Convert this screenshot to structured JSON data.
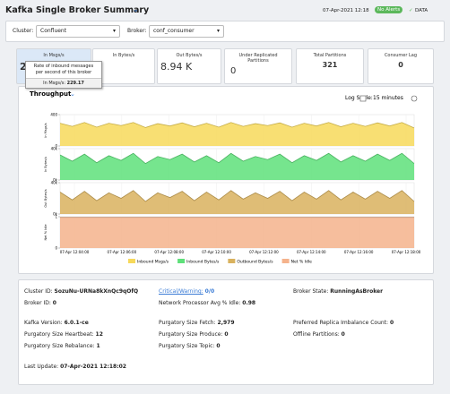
{
  "header": {
    "title": "Kafka Single Broker Summary",
    "date": "07-Apr-2021 12:18",
    "alert": "No Alerts",
    "data_label": "DATA"
  },
  "filters": {
    "cluster_label": "Cluster:",
    "cluster": "Confluent",
    "broker_label": "Broker:",
    "broker": "conf_consumer"
  },
  "kpis": [
    {
      "label": "In Msgs/s",
      "value": "2"
    },
    {
      "label": "In Bytes/s"
    },
    {
      "label": "Out Bytes/s",
      "value": "8.94 K"
    },
    {
      "label": "Under Replicated Partitions",
      "value": "0"
    },
    {
      "label": "Total Partitions",
      "value": "321"
    },
    {
      "label": "Consumer Lag",
      "value": "0"
    }
  ],
  "tooltip": {
    "text": "Rate of inbound messages per second of this broker",
    "label": "In Msgs/s:",
    "value": "229.17"
  },
  "panel": {
    "title": "Throughput",
    "log_scale_label": "Log Scale:",
    "log_scale": false,
    "time_range": "15 minutes"
  },
  "chart_data": [
    {
      "type": "area",
      "ylabel": "In Msgs/s",
      "ylim": [
        0,
        400
      ],
      "yticks": [
        0,
        400
      ],
      "series": [
        {
          "name": "Inbound Msgs/s",
          "color": "#f7d95a",
          "values": [
            290,
            250,
            300,
            240,
            290,
            260,
            300,
            235,
            285,
            255,
            295,
            245,
            290,
            240,
            300,
            250,
            285,
            260,
            295,
            240,
            290,
            255,
            300,
            245,
            290,
            250,
            295,
            255,
            300,
            230
          ]
        }
      ]
    },
    {
      "type": "area",
      "ylabel": "In Bytes/s",
      "ylim": [
        0,
        40000
      ],
      "yticks": [
        {
          "value": 0,
          "label": "0k"
        },
        {
          "value": 40000,
          "label": "40k"
        }
      ],
      "series": [
        {
          "name": "Inbound Bytes/s",
          "color": "#5ee07a",
          "values": [
            32000,
            24000,
            33000,
            22000,
            31000,
            25000,
            34000,
            21000,
            30000,
            26000,
            33000,
            23000,
            31000,
            22000,
            34000,
            24000,
            30000,
            26000,
            33000,
            22000,
            31000,
            25000,
            34000,
            23000,
            31000,
            24000,
            33000,
            25000,
            34000,
            21000
          ]
        }
      ]
    },
    {
      "type": "area",
      "ylabel": "Out Bytes/s",
      "ylim": [
        0,
        40000
      ],
      "yticks": [
        {
          "value": 0,
          "label": "0k"
        },
        {
          "value": 40000,
          "label": "40k"
        }
      ],
      "series": [
        {
          "name": "Outbound Bytes/s",
          "color": "#d9b25e",
          "values": [
            28000,
            18000,
            29000,
            17000,
            27000,
            20000,
            30000,
            16000,
            27000,
            21000,
            29000,
            17000,
            28000,
            18000,
            30000,
            19000,
            27000,
            20000,
            29000,
            17000,
            28000,
            19000,
            30000,
            18000,
            28000,
            19000,
            29000,
            20000,
            30000,
            16000
          ]
        }
      ]
    },
    {
      "type": "area",
      "ylabel": "Net % Idle",
      "ylim": [
        0,
        1
      ],
      "yticks": [
        0,
        1
      ],
      "xticks": [
        "07-Apr 12:04:00",
        "07-Apr 12:06:00",
        "07-Apr 12:08:00",
        "07-Apr 12:10:00",
        "07-Apr 12:12:00",
        "07-Apr 12:14:00",
        "07-Apr 12:16:00",
        "07-Apr 12:18:00"
      ],
      "series": [
        {
          "name": "Net % Idle",
          "color": "#f5b38c",
          "values": [
            0.98,
            0.98,
            0.98,
            0.98,
            0.98,
            0.98,
            0.98,
            0.98,
            0.98,
            0.98,
            0.98,
            0.98,
            0.98,
            0.98,
            0.98,
            0.98,
            0.98,
            0.98,
            0.98,
            0.98,
            0.98,
            0.98,
            0.98,
            0.98,
            0.98,
            0.98,
            0.98,
            0.98,
            0.98,
            0.98
          ]
        }
      ]
    }
  ],
  "info": [
    [
      {
        "label": "Cluster ID:",
        "value": "SozuNu-URNa8kXnQc9qOfQ"
      },
      {
        "label": "Critical/Warning:",
        "value": "0/0"
      },
      {
        "label": "Broker State:",
        "value": "RunningAsBroker"
      }
    ],
    [
      {
        "label": "Broker ID:",
        "value": "0"
      },
      {
        "label": "Network Processor Avg % Idle:",
        "value": "0.98"
      }
    ],
    [
      {
        "label": "Kafka Version:",
        "value": "6.0.1-ce"
      },
      {
        "label": "Purgatory Size Fetch:",
        "value": "2,979"
      },
      {
        "label": "Preferred Replica Imbalance Count:",
        "value": "0"
      }
    ],
    [
      {
        "label": "Purgatory Size Heartbeat:",
        "value": "12"
      },
      {
        "label": "Purgatory Size Produce:",
        "value": "0"
      },
      {
        "label": "Offline Partitions:",
        "value": "0"
      }
    ],
    [
      {
        "label": "Purgatory Size Rebalance:",
        "value": "1"
      },
      {
        "label": "Purgatory Size Topic:",
        "value": "0"
      }
    ],
    [
      {
        "label": "Last Update:",
        "value": "07-Apr-2021 12:18:02"
      }
    ]
  ]
}
